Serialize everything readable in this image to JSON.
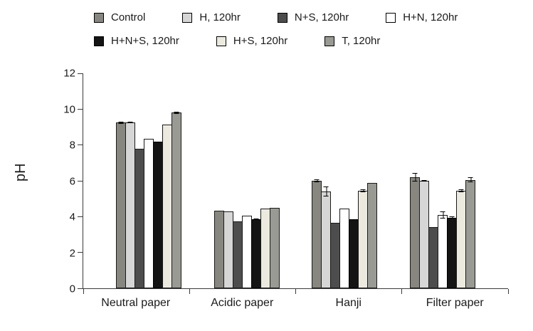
{
  "chart_data": {
    "type": "bar",
    "title": "",
    "xlabel": "",
    "ylabel": "pH",
    "ylim": [
      0,
      12
    ],
    "ytick_step": 2,
    "grid": false,
    "legend_position": "top",
    "legend_rows": [
      4,
      3
    ],
    "categories": [
      "Neutral paper",
      "Acidic paper",
      "Hanji",
      "Filter paper"
    ],
    "series": [
      {
        "name": "Control",
        "color": "#87877f",
        "border": "#1a1a1a",
        "values": [
          9.25,
          4.35,
          6.0,
          6.2
        ],
        "errors": [
          0.06,
          0,
          0.08,
          0.25
        ]
      },
      {
        "name": "H, 120hr",
        "color": "#d6d6d6",
        "border": "#1a1a1a",
        "values": [
          9.25,
          4.3,
          5.4,
          6.0
        ],
        "errors": [
          0.05,
          0,
          0.27,
          0.05
        ]
      },
      {
        "name": "N+S, 120hr",
        "color": "#4d4d4d",
        "border": "#1a1a1a",
        "values": [
          7.8,
          3.75,
          3.65,
          3.4
        ],
        "errors": [
          0,
          0,
          0,
          0
        ]
      },
      {
        "name": "H+N, 120hr",
        "color": "#ffffff",
        "border": "#1a1a1a",
        "values": [
          8.35,
          4.05,
          4.45,
          4.1
        ],
        "errors": [
          0,
          0,
          0,
          0.2
        ]
      },
      {
        "name": "H+N+S, 120hr",
        "color": "#141414",
        "border": "#000000",
        "values": [
          8.2,
          3.85,
          3.85,
          3.95
        ],
        "errors": [
          0,
          0.05,
          0,
          0.05
        ]
      },
      {
        "name": "H+S, 120hr",
        "color": "#eceadf",
        "border": "#1a1a1a",
        "values": [
          9.15,
          4.45,
          5.45,
          5.45
        ],
        "errors": [
          0,
          0,
          0.08,
          0.08
        ]
      },
      {
        "name": "T, 120hr",
        "color": "#9a9a94",
        "border": "#1a1a1a",
        "values": [
          9.8,
          4.5,
          5.9,
          6.05
        ],
        "errors": [
          0.06,
          0,
          0,
          0.13
        ]
      }
    ]
  },
  "colors": {
    "axis": "#3a3a3a",
    "error_bar": "#000000",
    "background": "#ffffff"
  }
}
